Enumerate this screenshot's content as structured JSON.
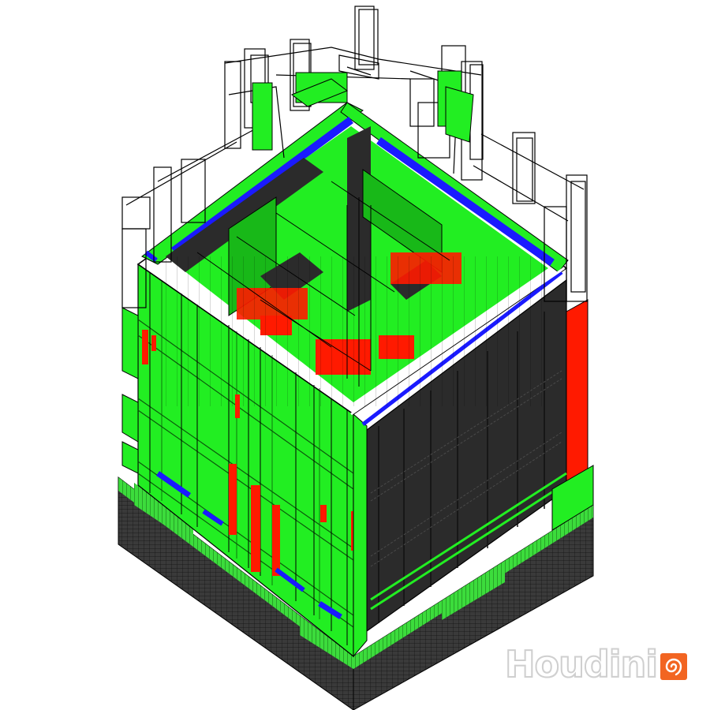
{
  "scene": {
    "palette": {
      "background": "#ffffff",
      "panel_green": "#22ee22",
      "panel_green_dark": "#18b818",
      "facade_dark": "#2b2b2b",
      "accent_red": "#ff1a00",
      "accent_blue": "#1a1aff",
      "wire": "#000000",
      "base_grid": "#3a3a3a",
      "base_green": "#3cdc3c"
    },
    "icons": [
      "houdini-logo-icon"
    ]
  },
  "watermark": {
    "text": "Houdini",
    "logo_color": "#f26522"
  }
}
